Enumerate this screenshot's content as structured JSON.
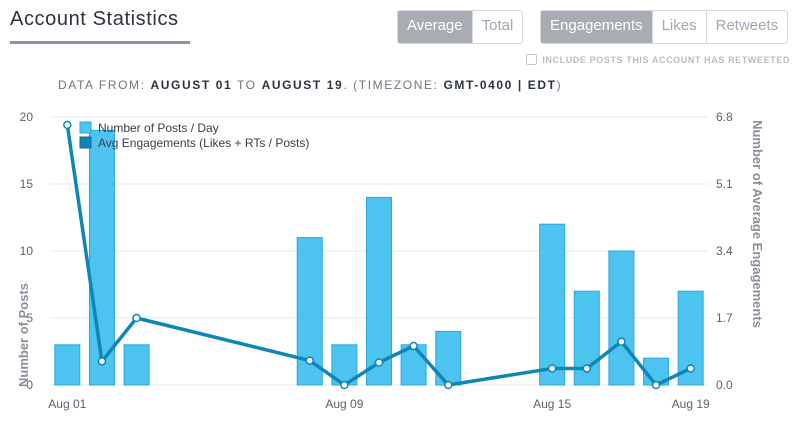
{
  "header": {
    "title": "Account Statistics",
    "metric_toggle": [
      "Average",
      "Total"
    ],
    "metric_active": "Average",
    "type_toggle": [
      "Engagements",
      "Likes",
      "Retweets"
    ],
    "type_active": "Engagements",
    "include_retweets_label": "INCLUDE POSTS THIS ACCOUNT HAS RETWEETED",
    "include_retweets_checked": false
  },
  "date_range": {
    "prefix": "DATA FROM:",
    "start": "AUGUST 01",
    "to": "TO",
    "end": "AUGUST 19",
    "tz_prefix": ". (TIMEZONE:",
    "timezone": "GMT-0400 | EDT",
    "tz_suffix": ")"
  },
  "colors": {
    "bar": "#4dc3f0",
    "bar_stroke": "#29a8dc",
    "line": "#0f86b8",
    "grid": "#e6e8eb"
  },
  "chart_data": {
    "type": "bar",
    "x": [
      "Aug 01",
      "Aug 02",
      "Aug 03",
      "Aug 04",
      "Aug 05",
      "Aug 06",
      "Aug 07",
      "Aug 08",
      "Aug 09",
      "Aug 10",
      "Aug 11",
      "Aug 12",
      "Aug 13",
      "Aug 14",
      "Aug 15",
      "Aug 16",
      "Aug 17",
      "Aug 18",
      "Aug 19"
    ],
    "x_tick_labels": [
      "Aug 01",
      "Aug 09",
      "Aug 15",
      "Aug 19"
    ],
    "series": [
      {
        "name": "Number of Posts / Day",
        "type": "bar",
        "axis": "left",
        "values": [
          3,
          19,
          3,
          0,
          0,
          0,
          0,
          11,
          3,
          14,
          3,
          4,
          0,
          0,
          12,
          7,
          10,
          2,
          7
        ]
      },
      {
        "name": "Avg Engagements (Likes + RTs / Posts)",
        "type": "line",
        "axis": "right",
        "x": [
          "Aug 01",
          "Aug 02",
          "Aug 03",
          "Aug 08",
          "Aug 09",
          "Aug 10",
          "Aug 11",
          "Aug 12",
          "Aug 15",
          "Aug 16",
          "Aug 17",
          "Aug 18",
          "Aug 19"
        ],
        "values": [
          6.6,
          0.6,
          1.7,
          0.62,
          0.0,
          0.57,
          0.99,
          0.0,
          0.42,
          0.42,
          1.1,
          0.0,
          0.42
        ]
      }
    ],
    "y_left": {
      "label": "Number of Posts",
      "ticks": [
        0,
        5,
        10,
        15,
        20
      ],
      "range": [
        0,
        20
      ]
    },
    "y_right": {
      "label": "Number of Average Engagements",
      "ticks": [
        "0.0",
        "1.7",
        "3.4",
        "5.1",
        "6.8"
      ],
      "range": [
        0,
        6.8
      ]
    },
    "grid": true,
    "legend_position": "top-left"
  }
}
